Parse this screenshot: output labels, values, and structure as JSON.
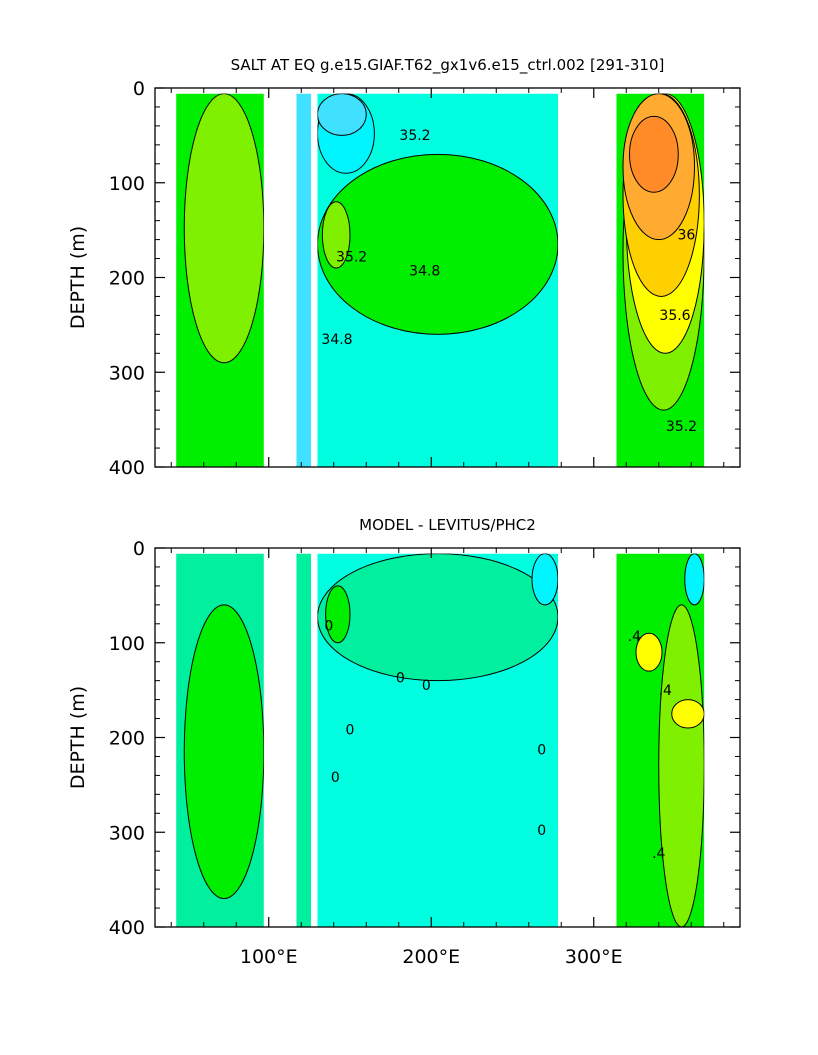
{
  "chart_data": [
    {
      "type": "heatmap",
      "title": "SALT AT EQ g.e15.GIAF.T62_gx1v6.e15_ctrl.002 [291-310]",
      "ylabel": "DEPTH (m)",
      "xlabel": "",
      "xlim": [
        30,
        390
      ],
      "ylim": [
        400,
        0
      ],
      "yticks": [
        0,
        100,
        200,
        300,
        400
      ],
      "xticks": [],
      "y_tick_labels": [
        "0",
        "100",
        "200",
        "300",
        "400"
      ],
      "x_tick_labels": [],
      "colors": {
        "green": "#00ee00",
        "light_green": "#7ef000",
        "cyan_light": "#00ffe0",
        "cyan": "#00f5ff",
        "sky": "#40e0ff",
        "yellow": "#ffff00",
        "yellow_orange": "#ffd000",
        "orange": "#ffaa30",
        "dark_orange": "#ff8c28",
        "dark_green": "#00c000"
      },
      "regions": [
        {
          "name": "indian",
          "x": [
            43,
            97
          ],
          "y": [
            6,
            400
          ],
          "fill": "green",
          "patches": [
            {
              "x": [
                48,
                97
              ],
              "y": [
                6,
                290
              ],
              "fill": "light_green"
            }
          ]
        },
        {
          "name": "pac-west-strip",
          "x": [
            117,
            126
          ],
          "y": [
            6,
            400
          ],
          "fill": "sky"
        },
        {
          "name": "pacific",
          "x": [
            130,
            278
          ],
          "y": [
            6,
            400
          ],
          "fill": "cyan_light",
          "patches": [
            {
              "x": [
                130,
                278
              ],
              "y": [
                70,
                260
              ],
              "fill": "green"
            },
            {
              "x": [
                130,
                165
              ],
              "y": [
                6,
                90
              ],
              "fill": "cyan"
            },
            {
              "x": [
                130,
                160
              ],
              "y": [
                6,
                50
              ],
              "fill": "sky"
            },
            {
              "x": [
                133,
                150
              ],
              "y": [
                120,
                190
              ],
              "fill": "light_green"
            }
          ]
        },
        {
          "name": "atlantic",
          "x": [
            314,
            368
          ],
          "y": [
            6,
            400
          ],
          "fill": "green",
          "patches": [
            {
              "x": [
                318,
                368
              ],
              "y": [
                6,
                340
              ],
              "fill": "light_green"
            },
            {
              "x": [
                320,
                368
              ],
              "y": [
                6,
                280
              ],
              "fill": "yellow"
            },
            {
              "x": [
                318,
                365
              ],
              "y": [
                6,
                220
              ],
              "fill": "yellow_orange"
            },
            {
              "x": [
                318,
                362
              ],
              "y": [
                6,
                160
              ],
              "fill": "orange"
            },
            {
              "x": [
                322,
                352
              ],
              "y": [
                30,
                110
              ],
              "fill": "dark_orange"
            }
          ]
        }
      ],
      "contour_labels": [
        {
          "text": "35.2",
          "x": 190,
          "y": 55
        },
        {
          "text": "35.2",
          "x": 151,
          "y": 183
        },
        {
          "text": "34.8",
          "x": 196,
          "y": 198
        },
        {
          "text": "34.8",
          "x": 142,
          "y": 270
        },
        {
          "text": "36",
          "x": 357,
          "y": 160
        },
        {
          "text": "35.6",
          "x": 350,
          "y": 245
        },
        {
          "text": "35.2",
          "x": 354,
          "y": 362
        }
      ]
    },
    {
      "type": "heatmap",
      "title": "MODEL - LEVITUS/PHC2",
      "ylabel": "DEPTH (m)",
      "xlabel": "",
      "xlim": [
        30,
        390
      ],
      "ylim": [
        400,
        0
      ],
      "yticks": [
        0,
        100,
        200,
        300,
        400
      ],
      "xticks": [
        100,
        200,
        300
      ],
      "y_tick_labels": [
        "0",
        "100",
        "200",
        "300",
        "400"
      ],
      "x_tick_labels": [
        "100°E",
        "200°E",
        "300°E"
      ],
      "colors": {
        "green": "#00ee00",
        "light_green": "#7ef000",
        "cyan_light": "#00ffe0",
        "cyan": "#00f5ff",
        "yellow": "#ffff00",
        "mint": "#00f0a0"
      },
      "regions": [
        {
          "name": "indian",
          "x": [
            43,
            97
          ],
          "y": [
            6,
            400
          ],
          "fill": "mint",
          "patches": [
            {
              "x": [
                48,
                97
              ],
              "y": [
                60,
                370
              ],
              "fill": "green"
            }
          ]
        },
        {
          "name": "pac-west-strip",
          "x": [
            117,
            126
          ],
          "y": [
            6,
            400
          ],
          "fill": "mint"
        },
        {
          "name": "pacific",
          "x": [
            130,
            278
          ],
          "y": [
            6,
            400
          ],
          "fill": "cyan_light",
          "patches": [
            {
              "x": [
                130,
                278
              ],
              "y": [
                6,
                140
              ],
              "fill": "mint"
            },
            {
              "x": [
                135,
                150
              ],
              "y": [
                40,
                100
              ],
              "fill": "green"
            },
            {
              "x": [
                262,
                278
              ],
              "y": [
                6,
                60
              ],
              "fill": "cyan"
            }
          ]
        },
        {
          "name": "atlantic",
          "x": [
            314,
            368
          ],
          "y": [
            6,
            400
          ],
          "fill": "green",
          "patches": [
            {
              "x": [
                340,
                368
              ],
              "y": [
                60,
                400
              ],
              "fill": "light_green"
            },
            {
              "x": [
                326,
                342
              ],
              "y": [
                90,
                130
              ],
              "fill": "yellow"
            },
            {
              "x": [
                348,
                368
              ],
              "y": [
                160,
                190
              ],
              "fill": "yellow"
            },
            {
              "x": [
                356,
                368
              ],
              "y": [
                6,
                60
              ],
              "fill": "cyan"
            }
          ]
        }
      ],
      "contour_labels": [
        {
          "text": "0",
          "x": 137,
          "y": 87
        },
        {
          "text": "0",
          "x": 181,
          "y": 142
        },
        {
          "text": "0",
          "x": 197,
          "y": 150
        },
        {
          "text": "0",
          "x": 150,
          "y": 197
        },
        {
          "text": "0",
          "x": 141,
          "y": 247
        },
        {
          "text": "0",
          "x": 268,
          "y": 218
        },
        {
          "text": "0",
          "x": 268,
          "y": 303
        },
        {
          "text": ".4",
          "x": 325,
          "y": 98
        },
        {
          "text": ".4",
          "x": 344,
          "y": 155
        },
        {
          "text": ".4",
          "x": 340,
          "y": 327
        }
      ]
    }
  ]
}
